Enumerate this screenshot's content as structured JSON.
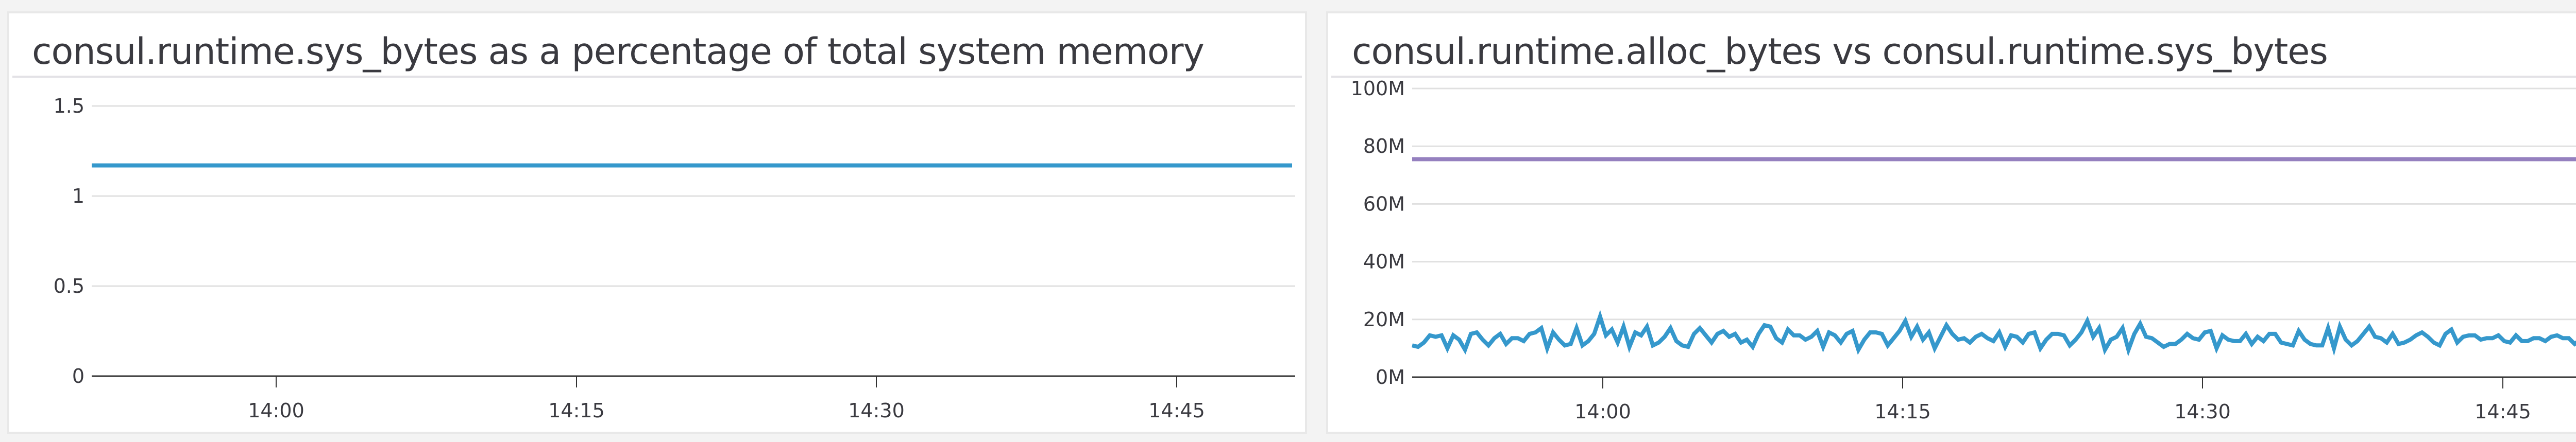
{
  "panels": [
    {
      "title": "consul.runtime.sys_bytes as a percentage of total system memory",
      "y_ticks": [
        "1.5",
        "1",
        "0.5",
        "0"
      ],
      "x_ticks": [
        "14:00",
        "14:15",
        "14:30",
        "14:45"
      ]
    },
    {
      "title": "consul.runtime.alloc_bytes vs consul.runtime.sys_bytes",
      "y_ticks": [
        "100M",
        "80M",
        "60M",
        "40M",
        "20M",
        "0M"
      ],
      "x_ticks": [
        "14:00",
        "14:15",
        "14:30",
        "14:45"
      ]
    }
  ],
  "colors": {
    "series_blue": "#3598cc",
    "series_purple": "#9580bf",
    "gridline": "#e0e0e0",
    "axis": "#333333",
    "background": "#f3f3f3",
    "panel_border": "#e8e8e8"
  },
  "chart_data": [
    {
      "type": "line",
      "title": "consul.runtime.sys_bytes as a percentage of total system memory",
      "xlabel": "",
      "ylabel": "",
      "ylim": [
        0,
        1.5
      ],
      "y_ticks": [
        0,
        0.5,
        1,
        1.5
      ],
      "x_tick_labels": [
        "14:00",
        "14:15",
        "14:30",
        "14:45"
      ],
      "x_range": [
        "13:48",
        "14:52"
      ],
      "grid": true,
      "legend": "none",
      "series": [
        {
          "name": "consul.runtime.sys_bytes %",
          "color": "#3598cc",
          "values": [
            1.17,
            1.17,
            1.17,
            1.17,
            1.17,
            1.17,
            1.17,
            1.17,
            1.17,
            1.17
          ]
        }
      ]
    },
    {
      "type": "line",
      "title": "consul.runtime.alloc_bytes vs consul.runtime.sys_bytes",
      "xlabel": "",
      "ylabel": "",
      "ylim": [
        0,
        100000000
      ],
      "y_ticks": [
        "0M",
        "20M",
        "40M",
        "60M",
        "80M",
        "100M"
      ],
      "x_tick_labels": [
        "14:00",
        "14:15",
        "14:30",
        "14:45"
      ],
      "x_range": [
        "13:48",
        "14:52"
      ],
      "grid": true,
      "legend": "none",
      "series": [
        {
          "name": "consul.runtime.sys_bytes",
          "color": "#9580bf",
          "values_M": [
            75.5,
            75.5,
            75.5,
            75.5,
            75.5,
            75.5,
            75.5,
            75.5,
            75.5,
            75.5
          ]
        },
        {
          "name": "consul.runtime.alloc_bytes",
          "color": "#3598cc",
          "values_M": [
            11,
            10.5,
            12,
            14.5,
            14,
            14.5,
            10,
            14.5,
            13,
            9.5,
            15,
            15.5,
            13,
            11,
            13.5,
            15,
            11.5,
            13.5,
            13.5,
            12.5,
            15,
            15.5,
            17,
            10,
            15.5,
            13,
            11,
            11.5,
            17,
            11,
            12.5,
            15,
            21,
            14.5,
            16.5,
            12,
            17.5,
            10.5,
            15.5,
            14.5,
            17.5,
            11,
            12,
            14,
            17,
            12.5,
            11,
            10.5,
            15,
            17,
            14.5,
            12,
            15,
            16,
            14,
            15,
            12,
            13,
            10.5,
            15,
            18,
            17.5,
            13.5,
            12,
            16.5,
            14.5,
            14.5,
            13,
            14,
            16,
            10.5,
            15.5,
            14.5,
            12,
            15,
            16,
            9.5,
            13,
            15.5,
            15.5,
            15,
            11,
            13.5,
            16,
            19.5,
            14,
            17.5,
            13,
            15.5,
            10,
            14,
            18,
            15,
            13,
            13.5,
            12,
            14,
            15,
            13.5,
            12.5,
            15.5,
            10.5,
            14.5,
            14,
            12,
            15,
            15.5,
            10,
            13,
            15,
            15,
            14.5,
            11,
            13,
            15.5,
            19.5,
            14,
            17,
            9.5,
            13,
            14,
            17,
            9.5,
            15,
            18.5,
            14,
            13.5,
            12,
            10.5,
            11.5,
            11.5,
            13,
            15,
            13.5,
            13,
            15.5,
            16,
            10,
            14.5,
            13,
            12.5,
            12.5,
            15,
            11.5,
            14,
            12.5,
            15,
            15,
            12,
            11.5,
            11,
            16,
            13,
            11.5,
            11,
            11,
            17,
            10,
            17.5,
            13,
            11,
            12.5,
            15,
            17.5,
            14,
            13.5,
            12,
            15,
            11.5,
            12,
            13,
            14.5,
            15.5,
            14,
            12,
            11,
            15,
            16.5,
            12,
            14,
            14.5,
            14.5,
            13,
            13.5,
            13.5,
            14.5,
            12.5,
            12,
            14.5,
            12.5,
            12.5,
            13.5,
            13.5,
            12.5,
            14,
            14.5,
            13.5,
            13.5,
            11.5,
            13,
            13.5,
            13.5,
            12.5
          ]
        }
      ]
    }
  ]
}
